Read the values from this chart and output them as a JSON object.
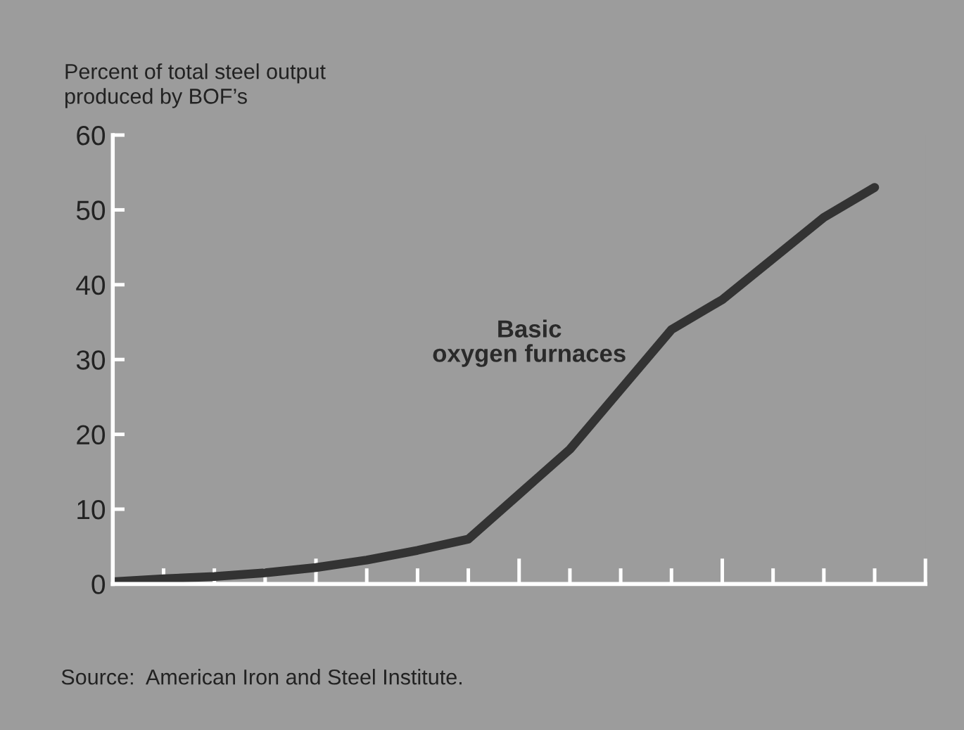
{
  "chart_data": {
    "type": "line",
    "ylabel": "Percent of total steel output\nproduced by BOF’s",
    "categories": [
      null,
      null,
      null,
      null,
      null,
      null,
      null,
      null,
      null,
      null,
      null,
      null,
      null,
      null,
      null,
      null,
      null
    ],
    "series": [
      {
        "name": "Basic\noxygen furnaces",
        "color": "#333333",
        "values": [
          0.3,
          0.7,
          1.0,
          1.5,
          2.2,
          3.2,
          4.5,
          6,
          12,
          18,
          26,
          34,
          38,
          43.5,
          49,
          53,
          null
        ]
      }
    ],
    "ylim": [
      0,
      60
    ],
    "yticks": [
      0,
      10,
      20,
      30,
      40,
      50,
      60
    ],
    "grid": false,
    "marker": "none",
    "line_style": "solid",
    "annotations": [
      "Source:  American Iron and Steel Institute."
    ]
  }
}
